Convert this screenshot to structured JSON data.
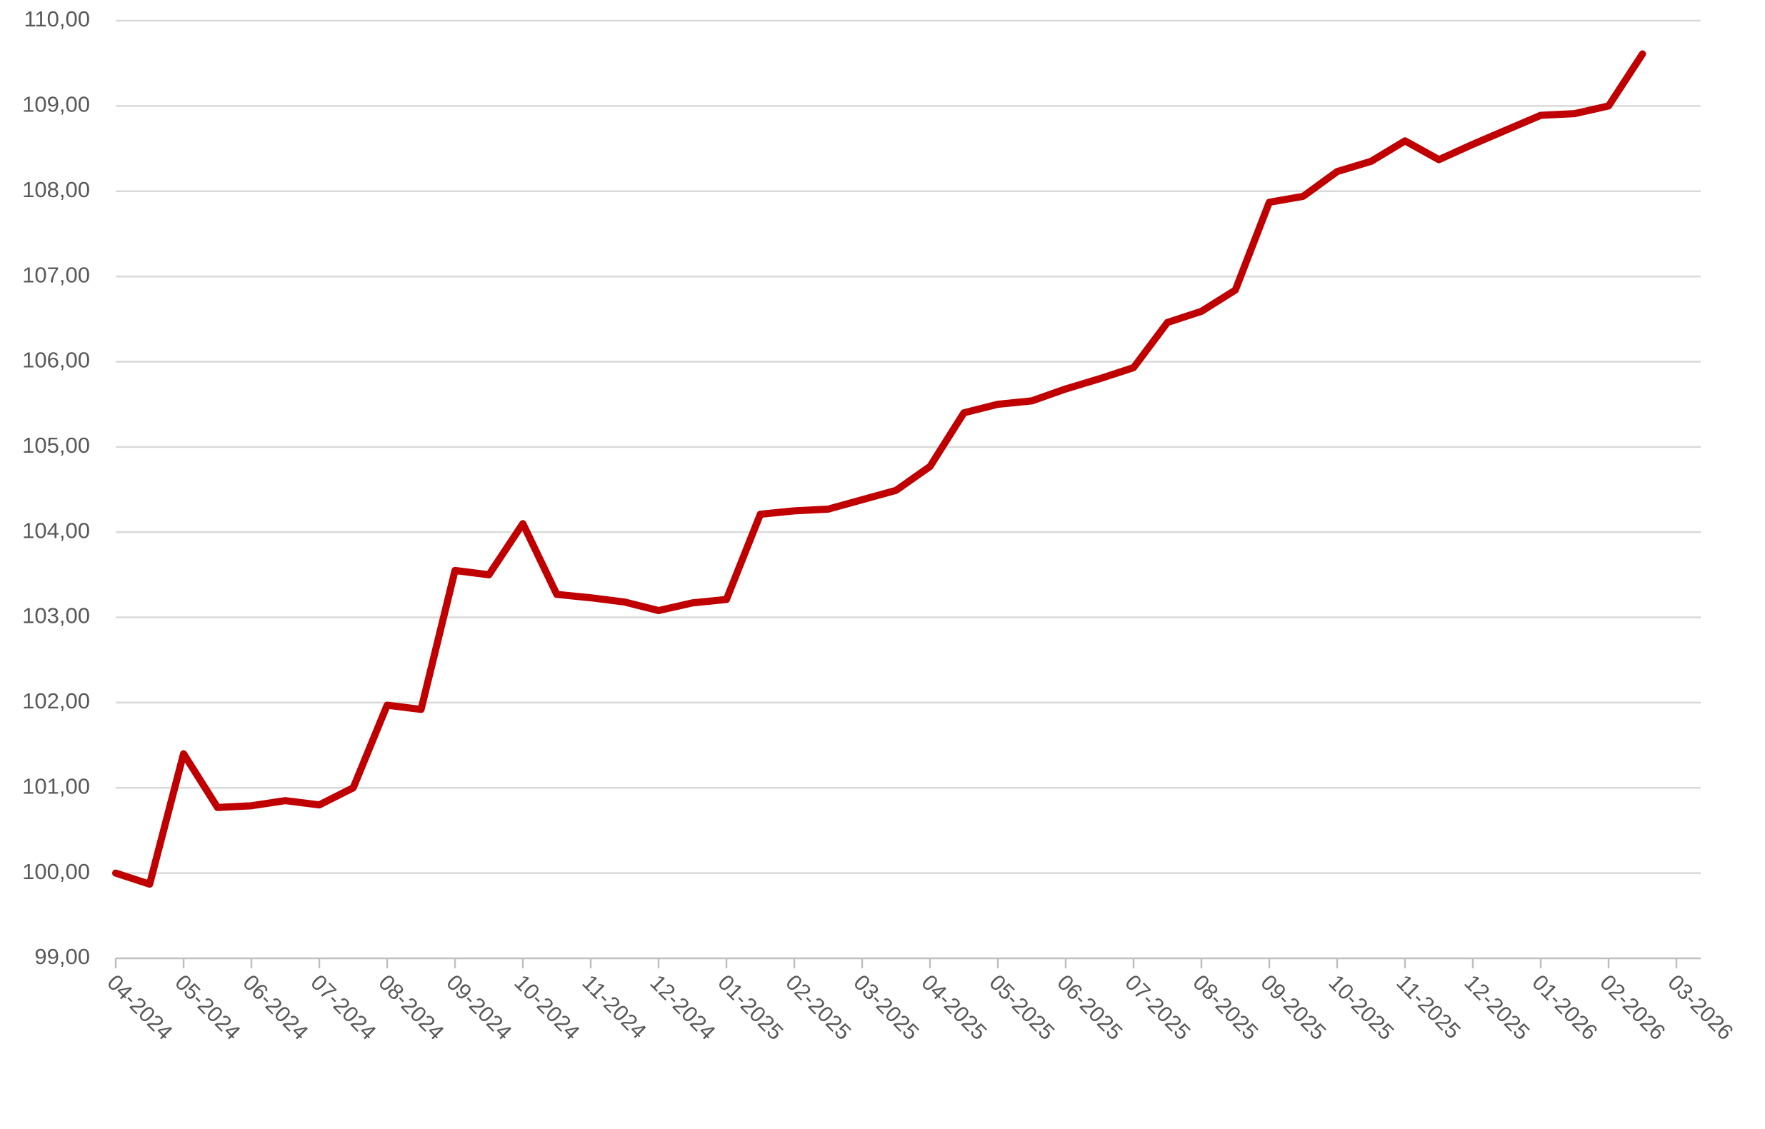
{
  "chart_data": {
    "type": "line",
    "categories": [
      "04-2024",
      null,
      "05-2024",
      null,
      "06-2024",
      null,
      "07-2024",
      null,
      "08-2024",
      null,
      "09-2024",
      null,
      "10-2024",
      null,
      "11-2024",
      null,
      "12-2024",
      null,
      "01-2025",
      null,
      "02-2025",
      null,
      "03-2025",
      null,
      "04-2025",
      null,
      "05-2025",
      null,
      "06-2025",
      null,
      "07-2025",
      null,
      "08-2025",
      null,
      "09-2025",
      null,
      "10-2025",
      null,
      "11-2025",
      null,
      "12-2025",
      null,
      "01-2026",
      null,
      "02-2026",
      null,
      "03-2026"
    ],
    "series": [
      {
        "color": "#c00000",
        "values": [
          100.0,
          99.87,
          101.4,
          100.77,
          100.79,
          100.85,
          100.8,
          101.0,
          101.97,
          101.92,
          103.55,
          103.5,
          104.1,
          103.27,
          103.23,
          103.18,
          103.08,
          103.17,
          103.21,
          104.21,
          104.25,
          104.27,
          104.38,
          104.49,
          104.77,
          105.4,
          105.5,
          105.54,
          105.68,
          105.8,
          105.93,
          106.46,
          106.59,
          106.84,
          107.87,
          107.94,
          108.23,
          108.35,
          108.59,
          108.37,
          108.55,
          108.72,
          108.89,
          108.91,
          109.0,
          109.61,
          null
        ]
      }
    ],
    "ylim": [
      99,
      110
    ],
    "yticks": [
      {
        "value": 99,
        "label": "99,00"
      },
      {
        "value": 100,
        "label": "100,00"
      },
      {
        "value": 101,
        "label": "101,00"
      },
      {
        "value": 102,
        "label": "102,00"
      },
      {
        "value": 103,
        "label": "103,00"
      },
      {
        "value": 104,
        "label": "104,00"
      },
      {
        "value": 105,
        "label": "105,00"
      },
      {
        "value": 106,
        "label": "106,00"
      },
      {
        "value": 107,
        "label": "107,00"
      },
      {
        "value": 108,
        "label": "108,00"
      },
      {
        "value": 109,
        "label": "109,00"
      },
      {
        "value": 110,
        "label": "110,00"
      }
    ],
    "grid": true
  }
}
